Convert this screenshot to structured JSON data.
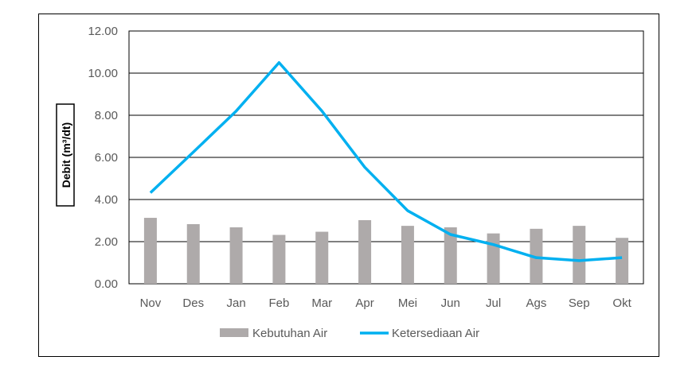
{
  "chart_data": {
    "type": "bar",
    "categories": [
      "Nov",
      "Des",
      "Jan",
      "Feb",
      "Mar",
      "Apr",
      "Mei",
      "Jun",
      "Jul",
      "Ags",
      "Sep",
      "Okt"
    ],
    "series": [
      {
        "name": "Kebutuhan Air",
        "type": "bar",
        "color": "#aeaaaa",
        "values": [
          3.13,
          2.83,
          2.68,
          2.32,
          2.47,
          3.02,
          2.75,
          2.68,
          2.39,
          2.61,
          2.75,
          2.18
        ]
      },
      {
        "name": "Ketersediaan Air",
        "type": "line",
        "color": "#00b0f0",
        "values": [
          4.32,
          6.25,
          8.2,
          10.5,
          8.2,
          5.53,
          3.47,
          2.34,
          1.86,
          1.24,
          1.1,
          1.24
        ]
      }
    ],
    "ylabel": "Debit (m³/dt)",
    "xlabel": "",
    "ylim": [
      0,
      12
    ],
    "yticks": [
      "0.00",
      "2.00",
      "4.00",
      "6.00",
      "8.00",
      "10.00",
      "12.00"
    ],
    "grid": true,
    "legend": "bottom"
  }
}
